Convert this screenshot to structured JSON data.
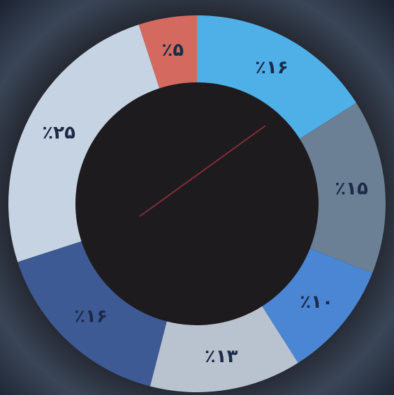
{
  "chart_data": {
    "type": "donut",
    "values": [
      16,
      15,
      10,
      13,
      16,
      25,
      5
    ],
    "value_labels": [
      "٪۱۶",
      "٪۱۵",
      "٪۱۰",
      "٪۱۳",
      "٪۱۶",
      "٪۲۵",
      "٪۵"
    ],
    "colors": [
      "#4fb0e8",
      "#6b7f95",
      "#4a86d4",
      "#b9c3d0",
      "#3e5a94",
      "#c5d3e3",
      "#d46a5f"
    ]
  }
}
